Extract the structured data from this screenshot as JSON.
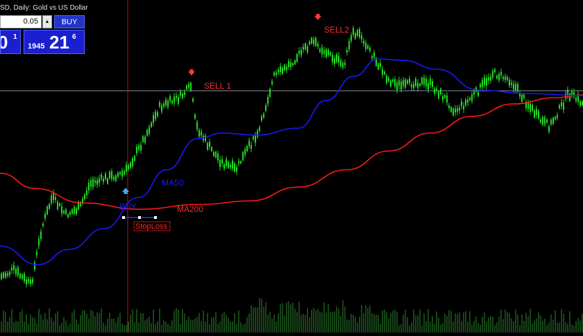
{
  "window": {
    "title": "SD, Daily:  Gold vs US Dollar"
  },
  "trade_panel": {
    "lot_value": "0.05",
    "buy_label": "BUY",
    "bid_digits_big": "0",
    "bid_digits_sup": "1",
    "ask_prefix": "1945",
    "ask_digits_big": "21",
    "ask_digits_sup": "6"
  },
  "annotations": {
    "sell1": "SELL 1",
    "sell2": "SELL2",
    "buy": "BUY",
    "stop_loss": "StopLoss",
    "ma50": "MA50",
    "ma200": "MA200"
  },
  "colors": {
    "background": "#000000",
    "candles": "#22dd22",
    "ma50": "#1a1aff",
    "ma200": "#ff1a1a",
    "volume": "#2e8b2e",
    "sell_arrow": "#ff3b3b",
    "buy_arrow": "#3fa9f5",
    "crosshair": "#cc1111",
    "hline": "#8a8fa8"
  },
  "icons": {
    "sell_arrow": "down-arrow-icon",
    "buy_arrow": "up-arrow-icon",
    "spin": "up-triangle-icon"
  }
}
